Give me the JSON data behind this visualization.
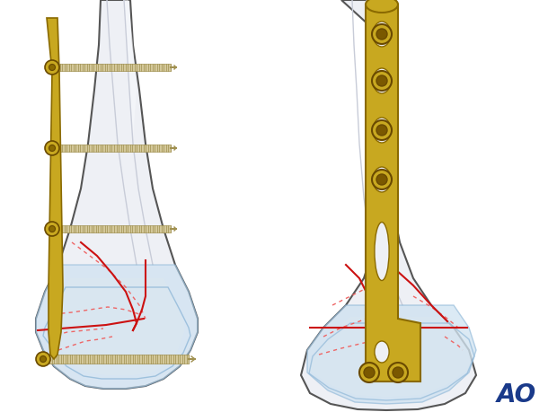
{
  "bg_color": "#ffffff",
  "ao_text": "AO",
  "ao_color": "#1a3a8a",
  "ao_fontsize": 20,
  "bone_fill": "#eef0f5",
  "bone_outline": "#555555",
  "bone_inner": "#c8ccd8",
  "shaft_fill": "#f5f6fa",
  "plate_color": "#c8a820",
  "plate_edge": "#8a6a00",
  "plate_shadow": "#a08010",
  "screw_fill": "#c8a820",
  "screw_edge": "#6a4a00",
  "screw_inner": "#e8c840",
  "thread_color": "#d4c89a",
  "thread_line": "#a09050",
  "fracture_red": "#cc1111",
  "fracture_dot": "#ee6666",
  "cartilage_fill": "#c8dff0",
  "cartilage_edge": "#90b8d8",
  "epiphysis_fill": "#dce8f0"
}
